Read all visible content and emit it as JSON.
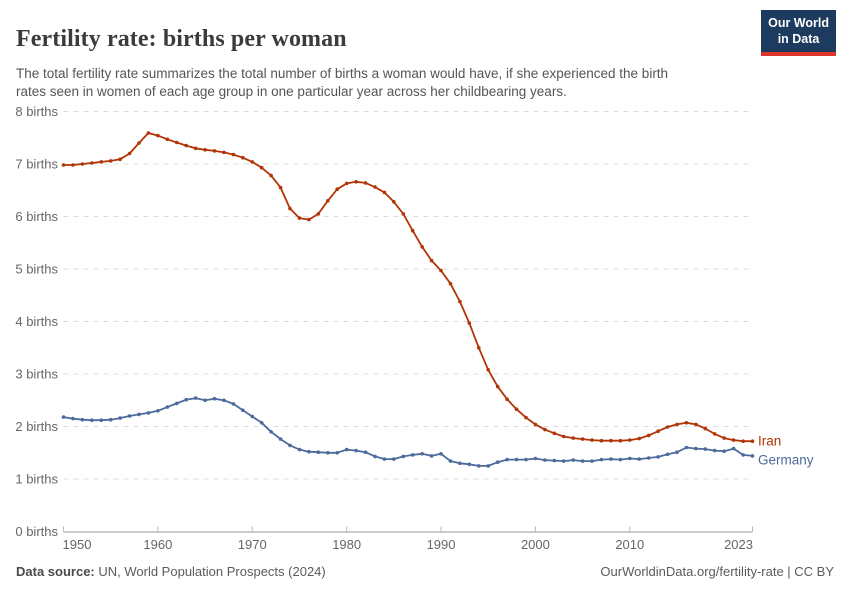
{
  "header": {
    "title": "Fertility rate: births per woman",
    "logo_line1": "Our World",
    "logo_line2": "in Data"
  },
  "subtitle": "The total fertility rate summarizes the total number of births a woman would have, if she experienced the birth\nrates seen in women of each age group in one particular year across her childbearing years.",
  "footer": {
    "source_label": "Data source:",
    "source_text": " UN, World Population Prospects (2024)",
    "credit": "OurWorldinData.org/fertility-rate | CC BY"
  },
  "colors": {
    "iran": "#b13507",
    "germany": "#4c6a9c",
    "grid": "#dcdcdc",
    "axis": "#9a9a9a",
    "tick": "#bbbbbb",
    "tick_text": "#666666",
    "logo_bg": "#1d3a5f",
    "logo_stripe": "#dc352c"
  },
  "chart_data": {
    "type": "line",
    "title": "Fertility rate: births per woman",
    "xlabel": "",
    "ylabel": "births",
    "grid": "dashed-horizontal",
    "legend": "line-end-labels",
    "ylim": [
      0,
      8
    ],
    "y_tick_labels": [
      "0 births",
      "1 births",
      "2 births",
      "3 births",
      "4 births",
      "5 births",
      "6 births",
      "7 births",
      "8 births"
    ],
    "x_ticks": [
      1950,
      1960,
      1970,
      1980,
      1990,
      2000,
      2010,
      2023
    ],
    "years": [
      1950,
      1951,
      1952,
      1953,
      1954,
      1955,
      1956,
      1957,
      1958,
      1959,
      1960,
      1961,
      1962,
      1963,
      1964,
      1965,
      1966,
      1967,
      1968,
      1969,
      1970,
      1971,
      1972,
      1973,
      1974,
      1975,
      1976,
      1977,
      1978,
      1979,
      1980,
      1981,
      1982,
      1983,
      1984,
      1985,
      1986,
      1987,
      1988,
      1989,
      1990,
      1991,
      1992,
      1993,
      1994,
      1995,
      1996,
      1997,
      1998,
      1999,
      2000,
      2001,
      2002,
      2003,
      2004,
      2005,
      2006,
      2007,
      2008,
      2009,
      2010,
      2011,
      2012,
      2013,
      2014,
      2015,
      2016,
      2017,
      2018,
      2019,
      2020,
      2021,
      2022,
      2023
    ],
    "series": [
      {
        "name": "Iran",
        "color": "#b13507",
        "values": [
          6.98,
          6.98,
          7.0,
          7.02,
          7.04,
          7.06,
          7.09,
          7.2,
          7.4,
          7.59,
          7.54,
          7.47,
          7.41,
          7.35,
          7.3,
          7.27,
          7.25,
          7.22,
          7.18,
          7.12,
          7.04,
          6.93,
          6.78,
          6.55,
          6.15,
          5.97,
          5.94,
          6.05,
          6.3,
          6.52,
          6.63,
          6.66,
          6.64,
          6.56,
          6.46,
          6.28,
          6.05,
          5.73,
          5.42,
          5.16,
          4.97,
          4.72,
          4.38,
          3.97,
          3.5,
          3.08,
          2.76,
          2.52,
          2.33,
          2.17,
          2.04,
          1.94,
          1.87,
          1.81,
          1.78,
          1.76,
          1.74,
          1.73,
          1.73,
          1.73,
          1.74,
          1.77,
          1.83,
          1.91,
          1.99,
          2.04,
          2.07,
          2.04,
          1.96,
          1.86,
          1.78,
          1.74,
          1.72,
          1.72
        ]
      },
      {
        "name": "Germany",
        "color": "#4c6a9c",
        "values": [
          2.18,
          2.15,
          2.13,
          2.12,
          2.12,
          2.13,
          2.16,
          2.2,
          2.23,
          2.26,
          2.3,
          2.37,
          2.44,
          2.51,
          2.54,
          2.5,
          2.53,
          2.5,
          2.43,
          2.31,
          2.19,
          2.07,
          1.9,
          1.76,
          1.64,
          1.56,
          1.52,
          1.51,
          1.5,
          1.5,
          1.56,
          1.54,
          1.51,
          1.43,
          1.38,
          1.38,
          1.43,
          1.46,
          1.48,
          1.44,
          1.48,
          1.34,
          1.3,
          1.28,
          1.25,
          1.25,
          1.32,
          1.37,
          1.37,
          1.37,
          1.39,
          1.36,
          1.35,
          1.34,
          1.36,
          1.34,
          1.34,
          1.37,
          1.38,
          1.37,
          1.39,
          1.38,
          1.4,
          1.42,
          1.47,
          1.51,
          1.6,
          1.58,
          1.57,
          1.54,
          1.53,
          1.58,
          1.46,
          1.44
        ]
      }
    ]
  }
}
